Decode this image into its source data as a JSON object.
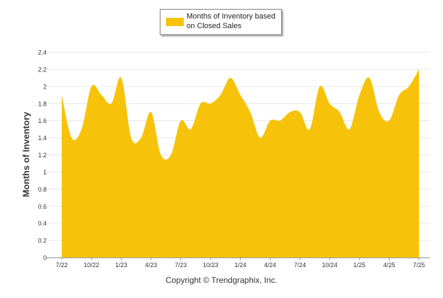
{
  "chart_data": {
    "type": "area",
    "title": "",
    "ylabel": "Months of Inventory",
    "xlabel": "",
    "ylim": [
      0,
      2.4
    ],
    "yticks": [
      "0",
      "0.2",
      "0.4",
      "0.6",
      "0.8",
      "1",
      "1.2",
      "1.4",
      "1.6",
      "1.8",
      "2",
      "2.2",
      "2.4"
    ],
    "xticks": [
      "7/22",
      "10/22",
      "1/23",
      "4/23",
      "7/23",
      "10/23",
      "1/24",
      "4/24",
      "7/24",
      "10/24",
      "1/25",
      "4/25",
      "7/25"
    ],
    "grid": true,
    "legend_position": "top-center",
    "series": [
      {
        "name": "Months of Inventory based on Closed Sales",
        "color": "#f7c30a",
        "x": [
          "7/22",
          "8/22",
          "9/22",
          "10/22",
          "11/22",
          "12/22",
          "1/23",
          "2/23",
          "3/23",
          "4/23",
          "5/23",
          "6/23",
          "7/23",
          "8/23",
          "9/23",
          "10/23",
          "11/23",
          "12/23",
          "1/24",
          "2/24",
          "3/24",
          "4/24",
          "5/24",
          "6/24",
          "7/24",
          "8/24",
          "9/24",
          "10/24",
          "11/24",
          "12/24",
          "1/25",
          "2/25",
          "3/25",
          "4/25",
          "5/25",
          "6/25",
          "7/25"
        ],
        "values": [
          1.9,
          1.4,
          1.5,
          2.0,
          1.9,
          1.8,
          2.1,
          1.4,
          1.4,
          1.7,
          1.2,
          1.2,
          1.6,
          1.5,
          1.8,
          1.8,
          1.9,
          2.1,
          1.9,
          1.7,
          1.4,
          1.6,
          1.6,
          1.7,
          1.7,
          1.5,
          2.0,
          1.8,
          1.7,
          1.5,
          1.9,
          2.1,
          1.7,
          1.6,
          1.9,
          2.0,
          2.2
        ]
      }
    ]
  },
  "legend": {
    "label": "Months of Inventory based on Closed Sales"
  },
  "footer": {
    "copyright": "Copyright © Trendgraphix, Inc."
  }
}
